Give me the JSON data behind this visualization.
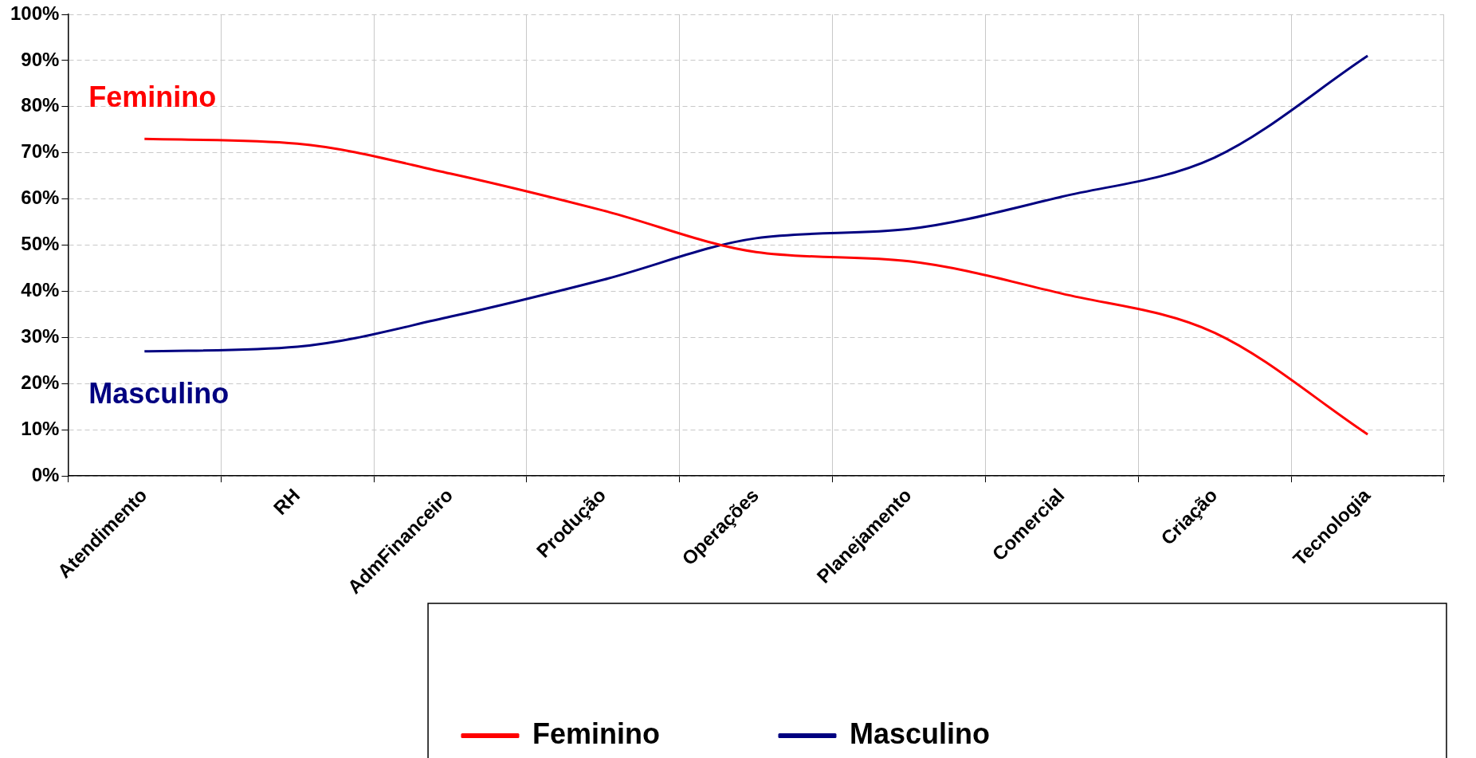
{
  "chart_data": {
    "type": "line",
    "categories": [
      "Atendimento",
      "RH",
      "AdmFinanceiro",
      "Produção",
      "Operações",
      "Planejamento",
      "Comercial",
      "Criação",
      "Tecnologia"
    ],
    "series": [
      {
        "name": "Feminino",
        "color": "#ff0000",
        "values": [
          73,
          72,
          65.5,
          57.5,
          48.5,
          46.5,
          39.5,
          31,
          9
        ]
      },
      {
        "name": "Masculino",
        "color": "#000080",
        "values": [
          27,
          28,
          34.5,
          42.5,
          51.5,
          53.5,
          60.5,
          69,
          91
        ]
      }
    ],
    "ylim": [
      0,
      100
    ],
    "yticks": [
      {
        "value": 0,
        "label": "0%"
      },
      {
        "value": 10,
        "label": "10%"
      },
      {
        "value": 20,
        "label": "20%"
      },
      {
        "value": 30,
        "label": "30%"
      },
      {
        "value": 40,
        "label": "40%"
      },
      {
        "value": 50,
        "label": "50%"
      },
      {
        "value": 60,
        "label": "60%"
      },
      {
        "value": 70,
        "label": "70%"
      },
      {
        "value": 80,
        "label": "80%"
      },
      {
        "value": 90,
        "label": "90%"
      },
      {
        "value": 100,
        "label": "100%"
      }
    ],
    "annotations": [
      "Feminino",
      "Masculino"
    ],
    "grid": true,
    "legend": "bottom",
    "marker": "none",
    "line_style": "solid"
  }
}
